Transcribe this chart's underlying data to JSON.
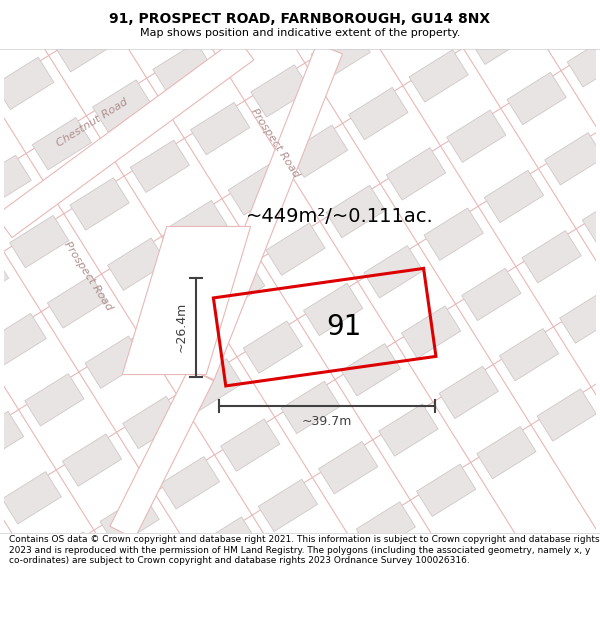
{
  "title_line1": "91, PROSPECT ROAD, FARNBOROUGH, GU14 8NX",
  "title_line2": "Map shows position and indicative extent of the property.",
  "area_text": "~449m²/~0.111ac.",
  "label_91": "91",
  "dim_width": "~39.7m",
  "dim_height": "~26.4m",
  "footer": "Contains OS data © Crown copyright and database right 2021. This information is subject to Crown copyright and database rights 2023 and is reproduced with the permission of HM Land Registry. The polygons (including the associated geometry, namely x, y co-ordinates) are subject to Crown copyright and database rights 2023 Ordnance Survey 100026316.",
  "map_bg": "#f7f4f4",
  "building_fill": "#e8e4e4",
  "building_edge": "#d0c8c8",
  "highlight_fill": "none",
  "highlight_edge": "#dd0000",
  "road_line_color": "#e8b8b8",
  "road_label_color": "#b09090",
  "dim_color": "#404040",
  "text_color": "#000000",
  "title_bg": "#ffffff",
  "footer_bg": "#ffffff",
  "title_fontsize": 10,
  "subtitle_fontsize": 8,
  "area_fontsize": 14,
  "label_fontsize": 20,
  "dim_fontsize": 9,
  "road_label_fontsize": 8,
  "footer_fontsize": 6.5
}
